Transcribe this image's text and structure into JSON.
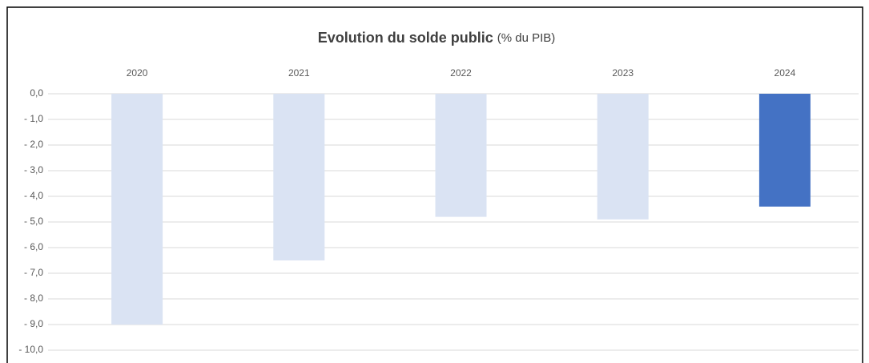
{
  "chart_data": {
    "type": "bar",
    "title": "Evolution du solde public",
    "subtitle": "(% du PIB)",
    "categories": [
      "2020",
      "2021",
      "2022",
      "2023",
      "2024"
    ],
    "values": [
      -9.0,
      -6.5,
      -4.8,
      -4.9,
      -4.4
    ],
    "colors": [
      "#dae3f3",
      "#dae3f3",
      "#dae3f3",
      "#dae3f3",
      "#4472c4"
    ],
    "ylim": [
      -10.4,
      0
    ],
    "yticks": [
      {
        "value": 0,
        "label": "0,0"
      },
      {
        "value": -1,
        "label": "- 1,0"
      },
      {
        "value": -2,
        "label": "- 2,0"
      },
      {
        "value": -3,
        "label": "- 3,0"
      },
      {
        "value": -4,
        "label": "- 4,0"
      },
      {
        "value": -5,
        "label": "- 5,0"
      },
      {
        "value": -6,
        "label": "- 6,0"
      },
      {
        "value": -7,
        "label": "- 7,0"
      },
      {
        "value": -8,
        "label": "- 8,0"
      },
      {
        "value": -9,
        "label": "- 9,0"
      },
      {
        "value": -10,
        "label": "- 10,0"
      }
    ],
    "grid": true
  }
}
